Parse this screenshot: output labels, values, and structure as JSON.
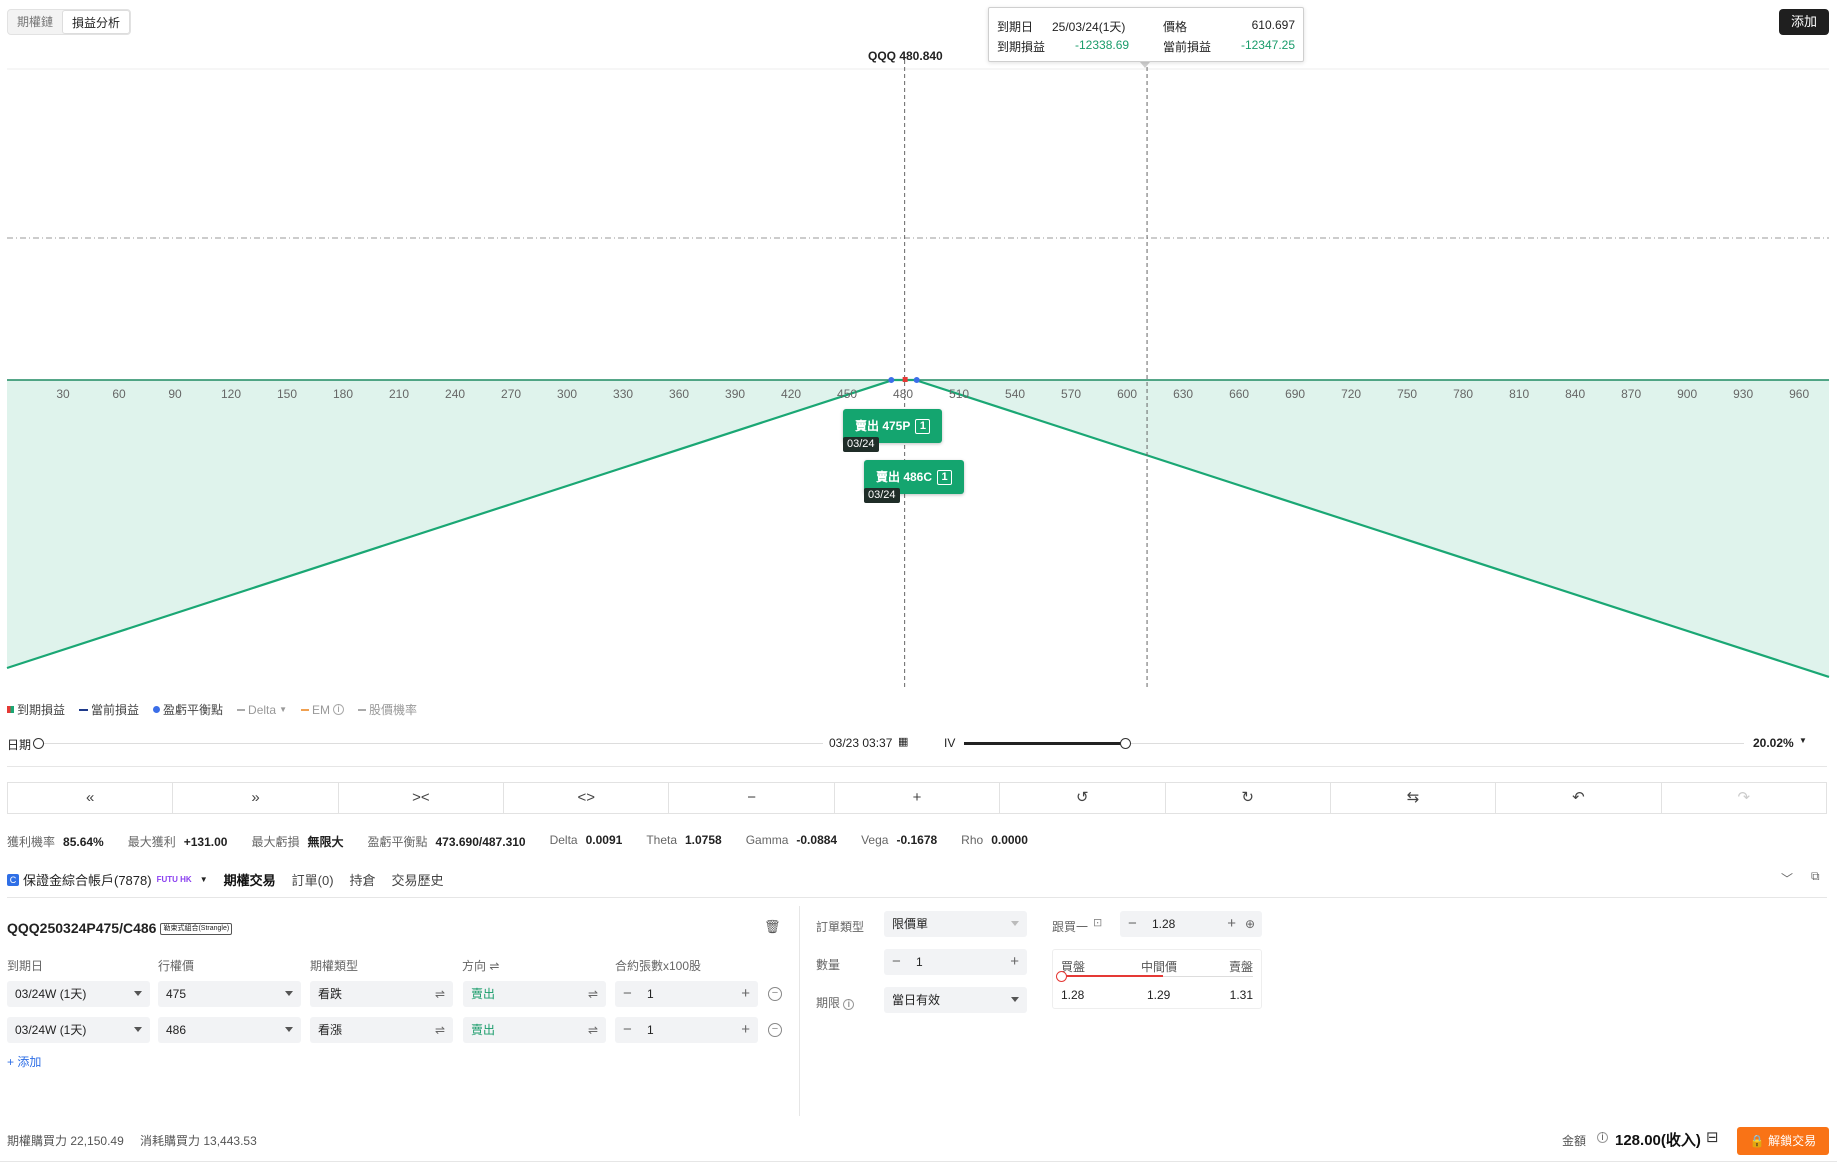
{
  "tabs": [
    "期權鏈",
    "損益分析"
  ],
  "add_button": "添加",
  "tooltip": {
    "expiry_label": "到期日",
    "expiry_value": "25/03/24(1天)",
    "price_label": "價格",
    "price_value": "610.697",
    "expiry_pl_label": "到期損益",
    "expiry_pl_value": "-12338.69",
    "current_pl_label": "當前損益",
    "current_pl_value": "-12347.25"
  },
  "underlying_label": "QQQ 480.840",
  "chart_data": {
    "type": "area",
    "x_ticks": [
      30,
      60,
      90,
      120,
      150,
      180,
      210,
      240,
      270,
      300,
      330,
      360,
      390,
      420,
      450,
      480,
      510,
      540,
      570,
      600,
      630,
      660,
      690,
      720,
      750,
      780,
      810,
      840,
      870,
      900,
      930,
      960
    ],
    "xlim": [
      0,
      976
    ],
    "series": [
      {
        "name": "到期損益",
        "points": [
          [
            0,
            -47494
          ],
          [
            474.5,
            0
          ],
          [
            486.5,
            0
          ],
          [
            976,
            -48972
          ]
        ]
      }
    ],
    "current_price": 480.84,
    "cursor_price": 610.697,
    "breakeven": [
      473.69,
      487.31
    ],
    "positions": [
      {
        "label": "賣出 475P",
        "qty": "1",
        "date": "03/24"
      },
      {
        "label": "賣出 486C",
        "qty": "1",
        "date": "03/24"
      }
    ],
    "colors": {
      "line": "#1aa774",
      "fill": "#dff3ec"
    }
  },
  "legend": [
    {
      "label": "到期損益",
      "color": "#e53935",
      "muted": false
    },
    {
      "label": "當前損益",
      "color": "#1e3a8a",
      "muted": false
    },
    {
      "label": "盈虧平衡點",
      "color": "#3b6ee8",
      "muted": false
    },
    {
      "label": "Delta",
      "color": "#aaa",
      "muted": true
    },
    {
      "label": "EM",
      "color": "#f0a050",
      "muted": true
    },
    {
      "label": "股價機率",
      "color": "#aaa",
      "muted": true
    }
  ],
  "date_row": {
    "label": "日期",
    "value": "03/23 03:37",
    "iv_label": "IV",
    "iv_value": "20.02%",
    "iv_level": 0.2,
    "date_level": 0.0
  },
  "toolbar": [
    "«",
    "»",
    "><",
    "<>",
    "−",
    "+",
    "↺",
    "↻",
    "⇆",
    "↶",
    "↷"
  ],
  "stats": [
    {
      "k": "獲利機率",
      "v": "85.64%",
      "c": ""
    },
    {
      "k": "最大獲利",
      "v": "+131.00",
      "c": "red"
    },
    {
      "k": "最大虧損",
      "v": "無限大",
      "c": "green"
    },
    {
      "k": "盈虧平衡點",
      "v": "473.690/487.310",
      "c": ""
    },
    {
      "k": "Delta",
      "v": "0.0091",
      "c": ""
    },
    {
      "k": "Theta",
      "v": "1.0758",
      "c": ""
    },
    {
      "k": "Gamma",
      "v": "-0.0884",
      "c": ""
    },
    {
      "k": "Vega",
      "v": "-0.1678",
      "c": ""
    },
    {
      "k": "Rho",
      "v": "0.0000",
      "c": ""
    }
  ],
  "account": {
    "name": "保證金綜合帳戶(7878)",
    "broker": "FUTU HK",
    "tabs": [
      "期權交易",
      "訂單(0)",
      "持倉",
      "交易歷史"
    ]
  },
  "strategy": {
    "symbol": "QQQ250324P475/C486",
    "tag": "勒束式組合(Strangle)"
  },
  "legs_headers": [
    "到期日",
    "行權價",
    "期權類型",
    "方向 ⇌",
    "合約張數x100股"
  ],
  "legs": [
    {
      "expiry": "03/24W (1天)",
      "strike": "475",
      "type": "看跌",
      "side": "賣出",
      "qty": "1"
    },
    {
      "expiry": "03/24W (1天)",
      "strike": "486",
      "type": "看漲",
      "side": "賣出",
      "qty": "1"
    }
  ],
  "add_leg": "+ 添加",
  "order": {
    "type_label": "訂單類型",
    "type_value": "限價單",
    "qty_label": "數量",
    "qty_value": "1",
    "tif_label": "期限",
    "tif_value": "當日有效",
    "follow_label": "跟買一",
    "price_value": "1.28",
    "bid_label": "買盤",
    "mid_label": "中間價",
    "ask_label": "賣盤",
    "bid": "1.28",
    "mid": "1.29",
    "ask": "1.31"
  },
  "footer": {
    "bp_label": "期權購買力",
    "bp_value": "22,150.49",
    "consume_label": "消耗購買力",
    "consume_value": "13,443.53",
    "amount_label": "金額",
    "amount_value": "128.00(收入)",
    "unlock": "解鎖交易"
  }
}
